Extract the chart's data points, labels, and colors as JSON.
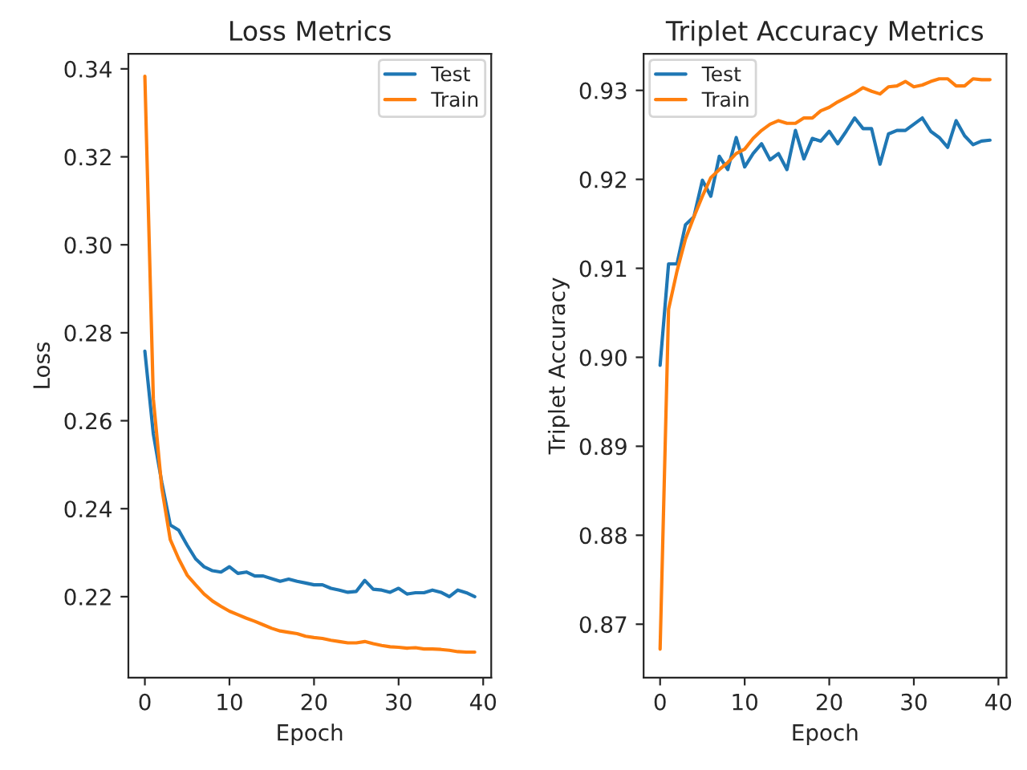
{
  "chart_data": [
    {
      "type": "line",
      "title": "Loss Metrics",
      "xlabel": "Epoch",
      "ylabel": "Loss",
      "legend": "top right",
      "grid": false,
      "x": [
        0,
        1,
        2,
        3,
        4,
        5,
        6,
        7,
        8,
        9,
        10,
        11,
        12,
        13,
        14,
        15,
        16,
        17,
        18,
        19,
        20,
        21,
        22,
        23,
        24,
        25,
        26,
        27,
        28,
        29,
        30,
        31,
        32,
        33,
        34,
        35,
        36,
        37,
        38,
        39
      ],
      "xlim": [
        -1.95,
        40.95
      ],
      "xticks": [
        0,
        10,
        20,
        30,
        40
      ],
      "ylim": [
        0.2016,
        0.3434
      ],
      "yticks": [
        0.22,
        0.24,
        0.26,
        0.28,
        {
          "value": 0.3,
          "label": "0.30"
        },
        0.32,
        0.34
      ],
      "series": [
        {
          "name": "Test",
          "color": "#1f77b4",
          "values": [
            0.2758,
            0.257,
            0.246,
            0.2363,
            0.2351,
            0.2317,
            0.2286,
            0.2268,
            0.2259,
            0.2256,
            0.2268,
            0.2253,
            0.2256,
            0.2247,
            0.2247,
            0.2241,
            0.2235,
            0.224,
            0.2235,
            0.2231,
            0.2227,
            0.2227,
            0.2219,
            0.2215,
            0.221,
            0.2212,
            0.2237,
            0.2217,
            0.2215,
            0.221,
            0.2219,
            0.2206,
            0.2209,
            0.2209,
            0.2215,
            0.221,
            0.22,
            0.2215,
            0.2209,
            0.22
          ]
        },
        {
          "name": "Train",
          "color": "#ff7f0e",
          "values": [
            0.3383,
            0.265,
            0.2447,
            0.233,
            0.2286,
            0.2249,
            0.2227,
            0.2206,
            0.219,
            0.2178,
            0.2167,
            0.2159,
            0.2151,
            0.2144,
            0.2136,
            0.2128,
            0.2122,
            0.2119,
            0.2116,
            0.211,
            0.2107,
            0.2105,
            0.2101,
            0.2098,
            0.2095,
            0.2095,
            0.2098,
            0.2093,
            0.2089,
            0.2086,
            0.2085,
            0.2083,
            0.2084,
            0.2081,
            0.2081,
            0.208,
            0.2078,
            0.2075,
            0.2074,
            0.2074
          ]
        }
      ]
    },
    {
      "type": "line",
      "title": "Triplet Accuracy Metrics",
      "xlabel": "Epoch",
      "ylabel": "Triplet Accuracy",
      "legend": "top left",
      "grid": false,
      "x": [
        0,
        1,
        2,
        3,
        4,
        5,
        6,
        7,
        8,
        9,
        10,
        11,
        12,
        13,
        14,
        15,
        16,
        17,
        18,
        19,
        20,
        21,
        22,
        23,
        24,
        25,
        26,
        27,
        28,
        29,
        30,
        31,
        32,
        33,
        34,
        35,
        36,
        37,
        38,
        39
      ],
      "xlim": [
        -1.95,
        40.95
      ],
      "xticks": [
        0,
        10,
        20,
        30,
        40
      ],
      "ylim": [
        0.864,
        0.9341
      ],
      "yticks": [
        0.87,
        0.88,
        0.89,
        {
          "value": 0.9,
          "label": "0.90"
        },
        0.91,
        0.92,
        0.93
      ],
      "series": [
        {
          "name": "Test",
          "color": "#1f77b4",
          "values": [
            0.8991,
            0.9105,
            0.9105,
            0.9149,
            0.9158,
            0.9199,
            0.9181,
            0.9226,
            0.9211,
            0.9247,
            0.9214,
            0.9229,
            0.924,
            0.9222,
            0.9229,
            0.9211,
            0.9255,
            0.9223,
            0.9246,
            0.9243,
            0.9254,
            0.924,
            0.9254,
            0.9269,
            0.9257,
            0.9257,
            0.9217,
            0.9251,
            0.9255,
            0.9255,
            0.9262,
            0.9269,
            0.9254,
            0.9247,
            0.9236,
            0.9266,
            0.9249,
            0.9239,
            0.9243,
            0.9244
          ]
        },
        {
          "name": "Train",
          "color": "#ff7f0e",
          "values": [
            0.8672,
            0.9054,
            0.9097,
            0.9133,
            0.9158,
            0.9181,
            0.9202,
            0.9211,
            0.9219,
            0.9229,
            0.9234,
            0.9246,
            0.9255,
            0.9262,
            0.9266,
            0.9263,
            0.9263,
            0.9269,
            0.9269,
            0.9277,
            0.9281,
            0.9287,
            0.9292,
            0.9297,
            0.9303,
            0.9299,
            0.9296,
            0.9304,
            0.9305,
            0.931,
            0.9304,
            0.9306,
            0.931,
            0.9313,
            0.9313,
            0.9305,
            0.9305,
            0.9313,
            0.9312,
            0.9312
          ]
        }
      ]
    }
  ]
}
